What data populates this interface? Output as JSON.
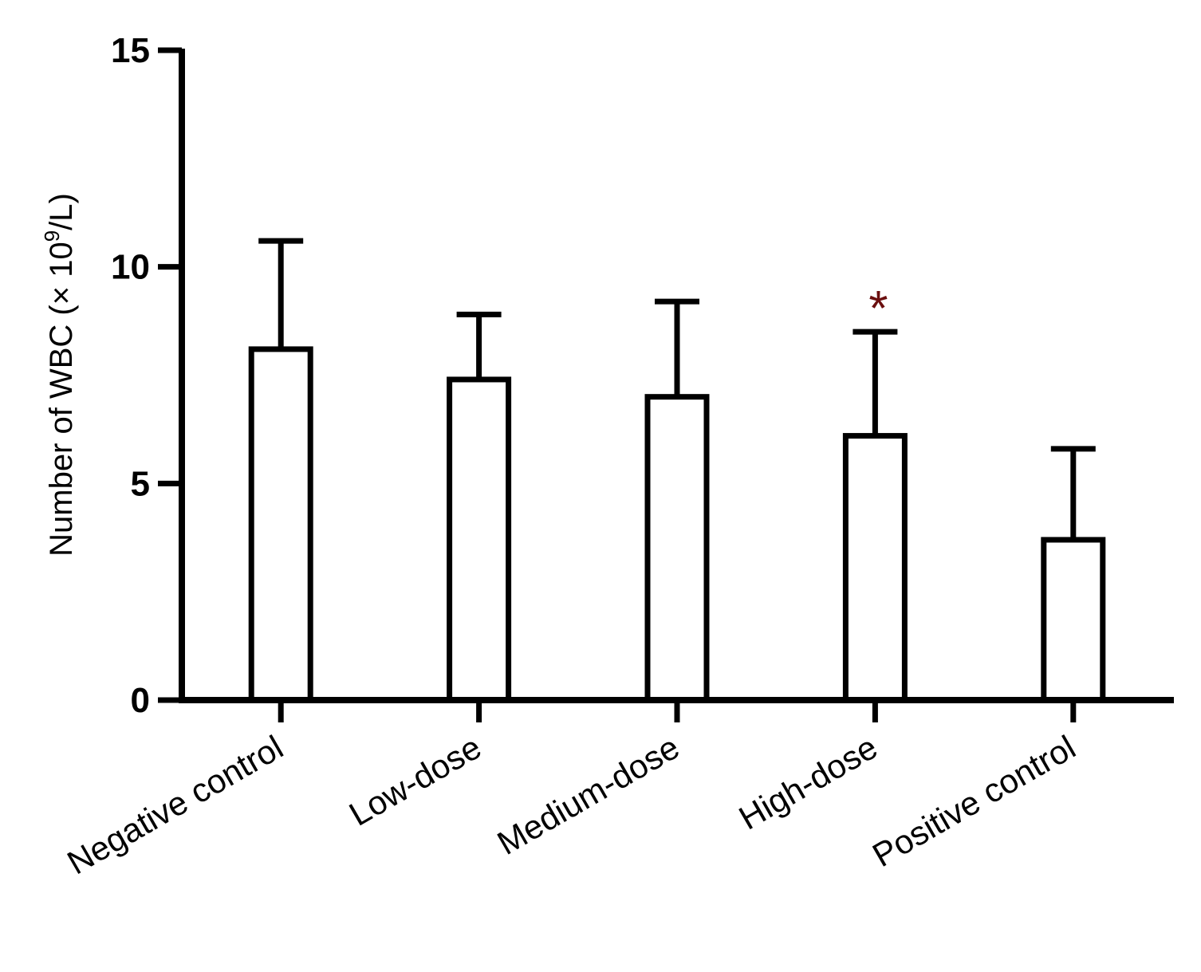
{
  "chart_data": {
    "type": "bar",
    "title": "",
    "xlabel": "",
    "ylabel_prefix": "Number of WBC (× 10",
    "ylabel_exp": "9",
    "ylabel_suffix": "/L)",
    "ylim": [
      0,
      15
    ],
    "yticks": [
      0,
      5,
      10,
      15
    ],
    "ytick_labels": [
      "0",
      "5",
      "10",
      "15"
    ],
    "grid": false,
    "legend": false,
    "categories": [
      "Negative control",
      "Low-dose",
      "Medium-dose",
      "High-dose",
      "Positive control"
    ],
    "values": [
      8.1,
      7.4,
      7.0,
      6.1,
      3.7
    ],
    "error_upper": [
      10.6,
      8.9,
      9.2,
      8.5,
      5.8
    ],
    "annotations": [
      {
        "category": "High-dose",
        "text": "*",
        "color": "#6b0f0f"
      }
    ],
    "colors": {
      "bar_fill": "#ffffff",
      "bar_stroke": "#000000",
      "axis": "#000000",
      "significance": "#6b0f0f"
    }
  }
}
